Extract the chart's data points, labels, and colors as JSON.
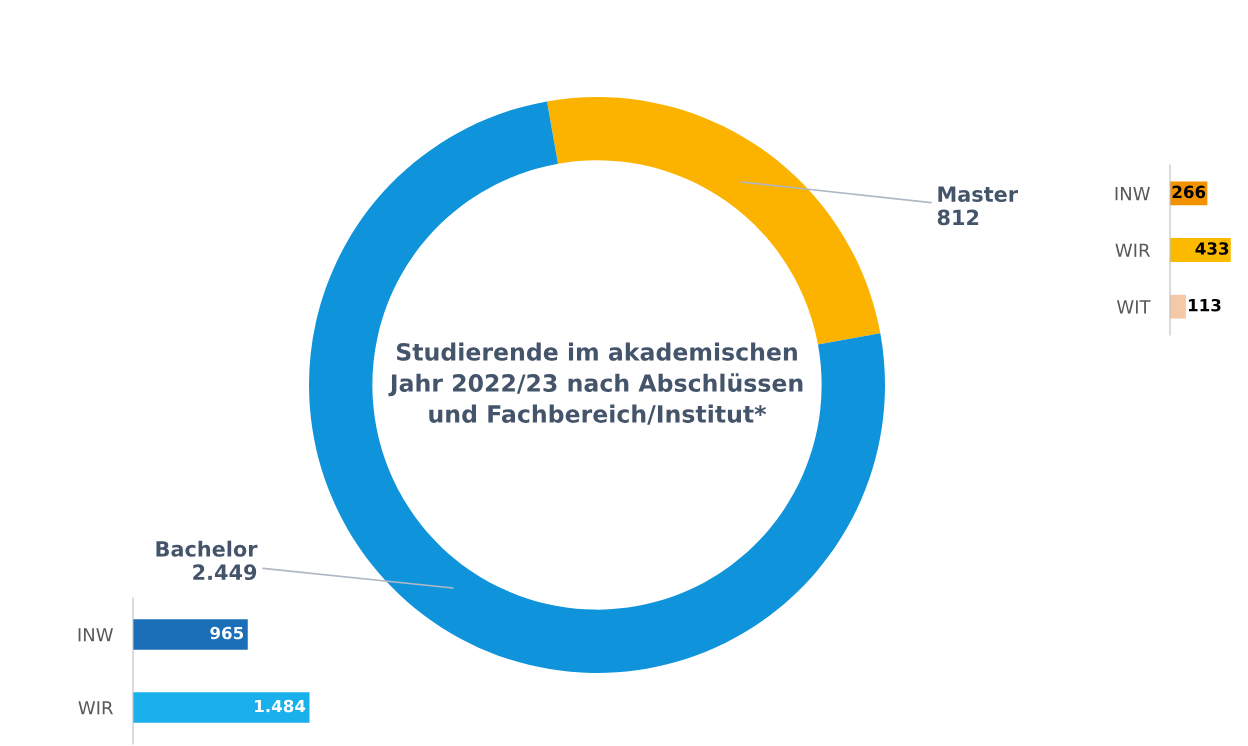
{
  "chart_data": [
    {
      "type": "donut",
      "title": "Studierende im akademischen\nJahr 2022/23 nach Abschlüssen\nund Fachbereich/Institut*",
      "categories": [
        "Master",
        "Bachelor"
      ],
      "values": [
        812,
        2449
      ],
      "value_labels": [
        "812",
        "2.449"
      ],
      "colors": [
        "#fbb300",
        "#0f94dc"
      ]
    },
    {
      "type": "bar",
      "orientation": "horizontal",
      "categories": [
        "INW",
        "WIR",
        "WIT"
      ],
      "values": [
        266,
        433,
        113
      ],
      "value_labels": [
        "266",
        "433",
        "113"
      ],
      "colors": [
        "#f39200",
        "#fbba00",
        "#f5c8a8"
      ]
    },
    {
      "type": "bar",
      "orientation": "horizontal",
      "categories": [
        "INW",
        "WIR"
      ],
      "values": [
        965,
        1484
      ],
      "value_labels": [
        "965",
        "1.484"
      ],
      "colors": [
        "#1a6fb8",
        "#1ab0ec"
      ]
    }
  ]
}
